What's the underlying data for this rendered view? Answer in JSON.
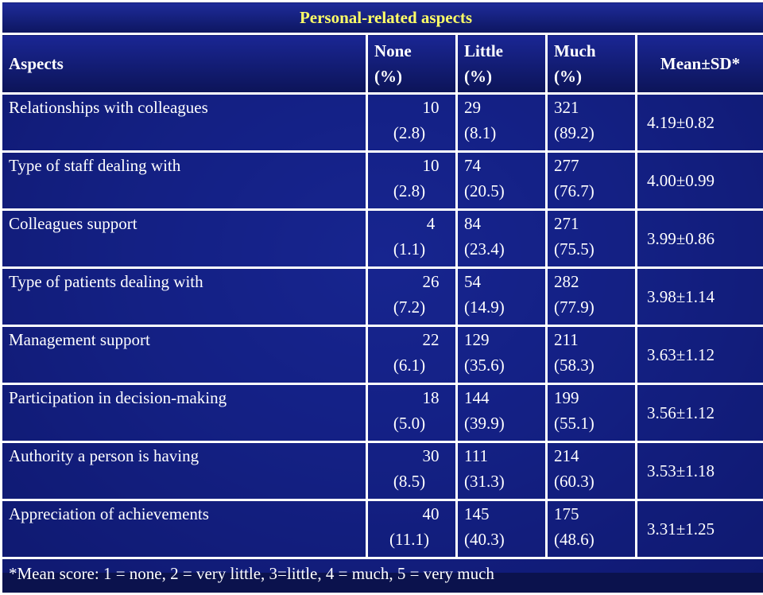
{
  "title": "Personal-related aspects",
  "headers": {
    "aspects": "Aspects",
    "none": [
      "None",
      "(%)"
    ],
    "little": [
      "Little",
      "(%)"
    ],
    "much": [
      "Much",
      "(%)"
    ],
    "mean": "Mean±SD*"
  },
  "rows": [
    {
      "aspect": "Relationships with colleagues",
      "none": [
        "10",
        "(2.8)"
      ],
      "little": [
        "29",
        "(8.1)"
      ],
      "much": [
        "321",
        "(89.2)"
      ],
      "mean": "4.19±0.82"
    },
    {
      "aspect": "Type of staff dealing with",
      "none": [
        "10",
        "(2.8)"
      ],
      "little": [
        "74",
        "(20.5)"
      ],
      "much": [
        "277",
        "(76.7)"
      ],
      "mean": "4.00±0.99"
    },
    {
      "aspect": "Colleagues support",
      "none": [
        "4",
        "(1.1)"
      ],
      "little": [
        "84",
        "(23.4)"
      ],
      "much": [
        "271",
        "(75.5)"
      ],
      "mean": "3.99±0.86"
    },
    {
      "aspect": "Type of patients dealing with",
      "none": [
        "26",
        "(7.2)"
      ],
      "little": [
        "54",
        "(14.9)"
      ],
      "much": [
        "282",
        "(77.9)"
      ],
      "mean": "3.98±1.14"
    },
    {
      "aspect": "Management support",
      "none": [
        "22",
        "(6.1)"
      ],
      "little": [
        "129",
        "(35.6)"
      ],
      "much": [
        "211",
        "(58.3)"
      ],
      "mean": "3.63±1.12"
    },
    {
      "aspect": "Participation in decision-making",
      "none": [
        "18",
        "(5.0)"
      ],
      "little": [
        "144",
        "(39.9)"
      ],
      "much": [
        "199",
        "(55.1)"
      ],
      "mean": "3.56±1.12"
    },
    {
      "aspect": "Authority a person is having",
      "none": [
        "30",
        "(8.5)"
      ],
      "little": [
        "111",
        "(31.3)"
      ],
      "much": [
        "214",
        "(60.3)"
      ],
      "mean": "3.53±1.18"
    },
    {
      "aspect": "Appreciation of achievements",
      "none": [
        "40",
        "(11.1)"
      ],
      "little": [
        "145",
        "(40.3)"
      ],
      "much": [
        "175",
        "(48.6)"
      ],
      "mean": "3.31±1.25"
    }
  ],
  "footnote": "*Mean score: 1 = none, 2 = very little, 3=little, 4 = much, 5 = very much"
}
